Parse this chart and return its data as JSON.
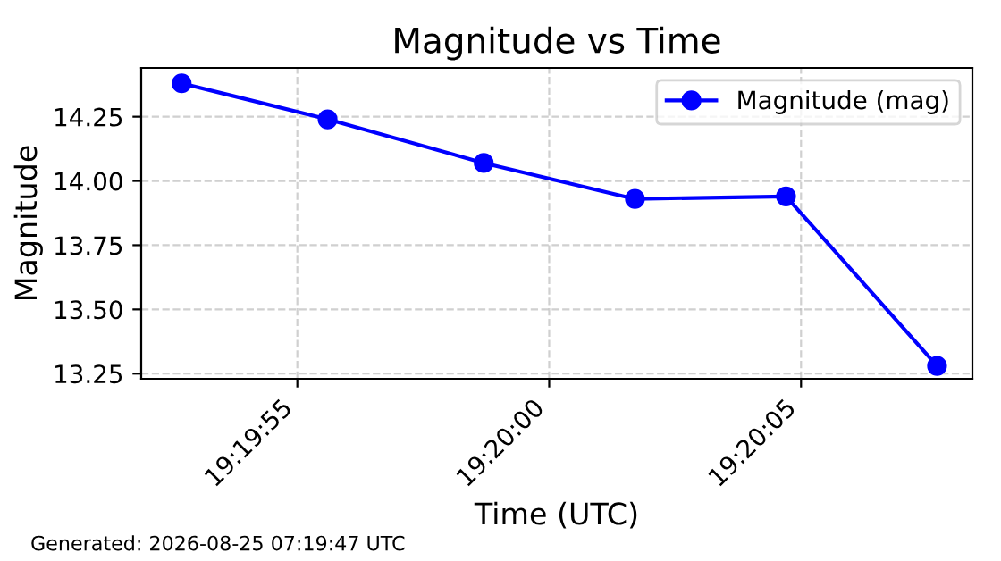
{
  "chart_data": {
    "type": "line",
    "title": "Magnitude vs Time",
    "xlabel": "Time (UTC)",
    "ylabel": "Magnitude",
    "x": [
      19.331306,
      19.332111,
      19.332972,
      19.333806,
      19.334639,
      19.335472
    ],
    "series": [
      {
        "name": "Magnitude (mag)",
        "color": "#0000ff",
        "values": [
          14.38,
          14.24,
          14.07,
          13.93,
          13.94,
          13.28
        ]
      }
    ],
    "xlim": [
      19.331083,
      19.335667
    ],
    "xticks": [
      {
        "value": 19.331944,
        "label": "19:19:55"
      },
      {
        "value": 19.333333,
        "label": "19:20:00"
      },
      {
        "value": 19.334722,
        "label": "19:20:05"
      }
    ],
    "ylim": [
      13.23,
      14.44
    ],
    "yticks": [
      {
        "value": 13.25,
        "label": "13.25"
      },
      {
        "value": 13.5,
        "label": "13.50"
      },
      {
        "value": 13.75,
        "label": "13.75"
      },
      {
        "value": 14.0,
        "label": "14.00"
      },
      {
        "value": 14.25,
        "label": "14.25"
      }
    ],
    "grid": true,
    "legend": "top right",
    "marker": "circle",
    "line_style": "solid",
    "annotations": [
      "Generated: 2026-08-25 07:19:47 UTC"
    ]
  }
}
